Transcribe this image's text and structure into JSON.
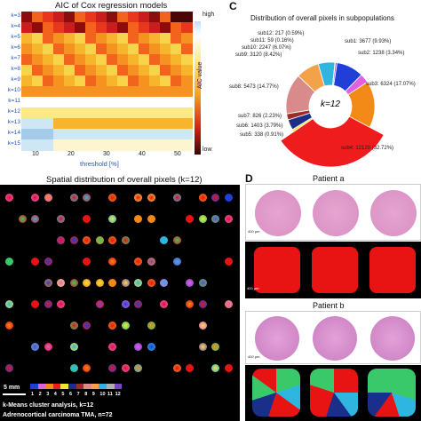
{
  "panelA": {
    "title": "AIC of Cox regression models",
    "xlabel": "threshold [%]",
    "xticks": [
      "10",
      "20",
      "30",
      "40",
      "50"
    ],
    "yticks": [
      "k=3",
      "k=4",
      "k=5",
      "k=6",
      "k=7",
      "k=8",
      "k=9",
      "k=10",
      "k=11",
      "k=12",
      "k=13",
      "k=14",
      "k=15"
    ],
    "colorbar_label": "AIC value",
    "colorbar_high": "high",
    "colorbar_low": "low"
  },
  "panelC": {
    "letter": "C",
    "title": "Distribution of overall pixels in subpopulations",
    "center": "k=12",
    "labels": {
      "sub12": "sub12: 217 (0.59%)",
      "sub11": "sub11: 59 (0.16%)",
      "sub10": "sub10: 2247 (6.07%)",
      "sub9": "sub9: 3120 (8.42%)",
      "sub8": "sub8: 5473 (14.77%)",
      "sub7": "sub7: 826 (2.23%)",
      "sub6": "sub6: 1403 (3.79%)",
      "sub5": "sub5: 338 (0.91%)",
      "sub4": "sub4: 12120 (32.72%)",
      "sub3": "sub3: 6324 (17.07%)",
      "sub2": "sub2: 1238 (3.34%)",
      "sub1": "sub1: 3677 (9.93%)"
    }
  },
  "panelB": {
    "title": "Spatial distribution of overall pixels (k=12)",
    "scalebar": "5 mm",
    "legend_nums": [
      "1",
      "2",
      "3",
      "4",
      "5",
      "6",
      "7",
      "8",
      "9",
      "10",
      "11",
      "12"
    ],
    "caption_line1": "k-Means cluster analysis, k=12",
    "caption_line2": "Adrenocortical carcinoma TMA, n=72"
  },
  "panelD": {
    "letter": "D",
    "patient_a": "Patient a",
    "patient_b": "Patient b",
    "scale": "400 µm"
  },
  "chart_data": {
    "type": "pie",
    "title": "Distribution of overall pixels in subpopulations",
    "categories": [
      "sub1",
      "sub2",
      "sub3",
      "sub4",
      "sub5",
      "sub6",
      "sub7",
      "sub8",
      "sub9",
      "sub10",
      "sub11",
      "sub12"
    ],
    "values": [
      3677,
      1238,
      6324,
      12120,
      338,
      1403,
      826,
      5473,
      3120,
      2247,
      59,
      217
    ],
    "percent": [
      9.93,
      3.34,
      17.07,
      32.72,
      0.91,
      3.79,
      2.23,
      14.77,
      8.42,
      6.07,
      0.16,
      0.59
    ],
    "colors": [
      "#1f3fd6",
      "#e060e0",
      "#f38a17",
      "#ee1c1c",
      "#f2e23a",
      "#1a2f8a",
      "#9b2c2c",
      "#d98a8a",
      "#f3a24a",
      "#2fb6e0",
      "#b0b0b0",
      "#7a44c6"
    ]
  }
}
